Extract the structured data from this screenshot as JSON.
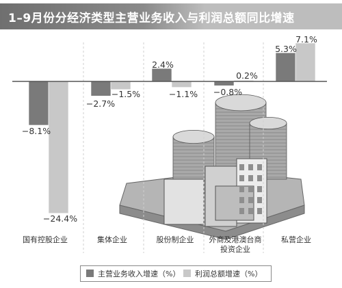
{
  "colors": {
    "revenue": "#7a7a7a",
    "profit": "#c8c8c8",
    "axis": "#555555",
    "grid": "#cfcfcf",
    "title_bg": "#7d7d7d"
  },
  "chart_data": {
    "type": "bar",
    "title": "1–9月份分经济类型主营业务收入与利润总额同比增速",
    "categories": [
      "国有控股企业",
      "集体企业",
      "股份制企业",
      "外商及港澳台商投资企业",
      "私营企业"
    ],
    "category_label_lines": [
      [
        "国有控股企业"
      ],
      [
        "集体企业"
      ],
      [
        "股份制企业"
      ],
      [
        "外商及港澳台商",
        "投资企业"
      ],
      [
        "私营企业"
      ]
    ],
    "series": [
      {
        "name": "主营业务收入增速（%）",
        "values": [
          -8.1,
          -2.7,
          2.4,
          -0.8,
          5.3
        ],
        "labels": [
          "−8.1%",
          "−2.7%",
          "2.4%",
          "−0.8%",
          "5.3%"
        ]
      },
      {
        "name": "利润总额增速（%）",
        "values": [
          -24.4,
          -1.5,
          -1.1,
          0.2,
          7.1
        ],
        "labels": [
          "−24.4%",
          "−1.5%",
          "−1.1%",
          "0.2%",
          "7.1%"
        ]
      }
    ],
    "ylim": [
      -26,
      9
    ],
    "grid": "vertical dashed separators",
    "legend_position": "bottom"
  }
}
